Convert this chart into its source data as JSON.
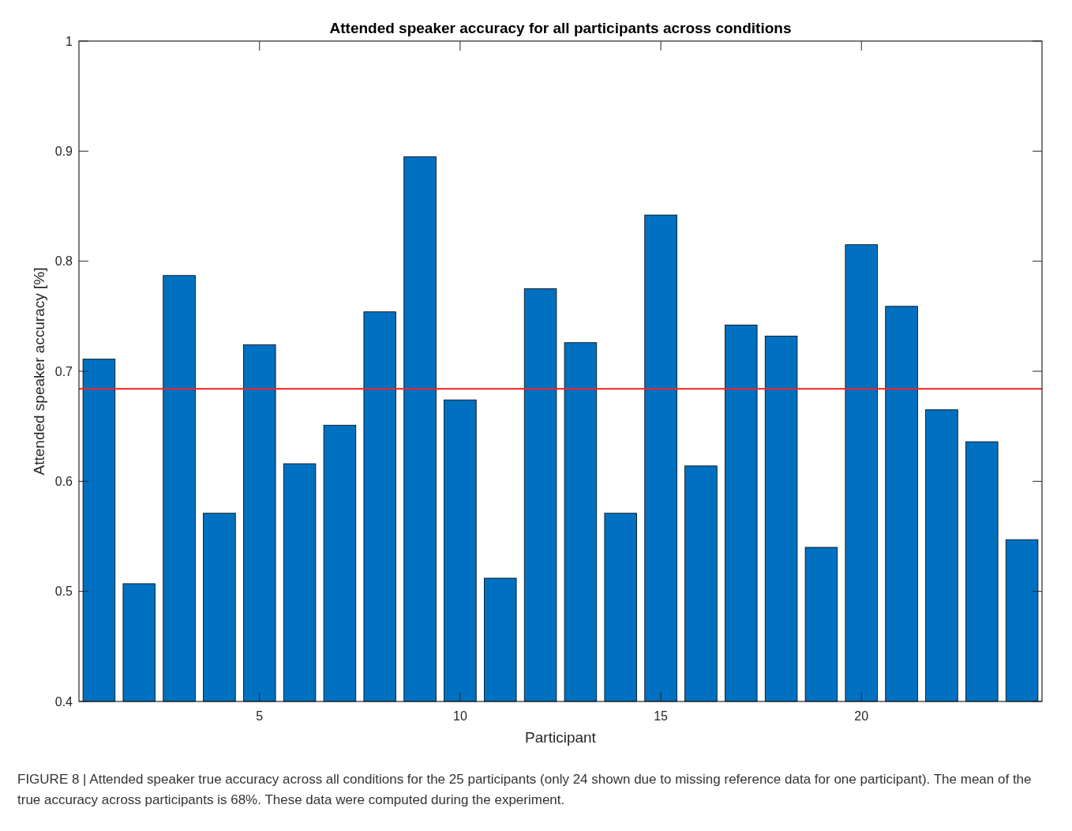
{
  "chart_data": {
    "type": "bar",
    "title": "Attended speaker accuracy for all participants across conditions",
    "xlabel": "Participant",
    "ylabel": "Attended speaker accuracy [%]",
    "x": [
      1,
      2,
      3,
      4,
      5,
      6,
      7,
      8,
      9,
      10,
      11,
      12,
      13,
      14,
      15,
      16,
      17,
      18,
      19,
      20,
      21,
      22,
      23,
      24
    ],
    "values": [
      0.711,
      0.507,
      0.787,
      0.571,
      0.724,
      0.616,
      0.651,
      0.754,
      0.895,
      0.674,
      0.512,
      0.775,
      0.726,
      0.571,
      0.842,
      0.614,
      0.742,
      0.732,
      0.54,
      0.815,
      0.759,
      0.665,
      0.636,
      0.547
    ],
    "color": "#0070c0",
    "xlim": [
      0.5,
      24.5
    ],
    "xticks": [
      5,
      10,
      15,
      20
    ],
    "ylim": [
      0.4,
      1
    ],
    "yticks": [
      0.4,
      0.5,
      0.6,
      0.7,
      0.8,
      0.9,
      1
    ],
    "ref_lines": [
      {
        "axis": "y",
        "value": 0.684,
        "color": "#ff2020"
      }
    ],
    "grid": false,
    "annotations": [
      "FIGURE 8 | Attended speaker true accuracy across all conditions for the 25 participants (only 24 shown due to missing reference data for one participant). The mean of the true accuracy across participants is 68%. These data were computed during the experiment."
    ]
  }
}
